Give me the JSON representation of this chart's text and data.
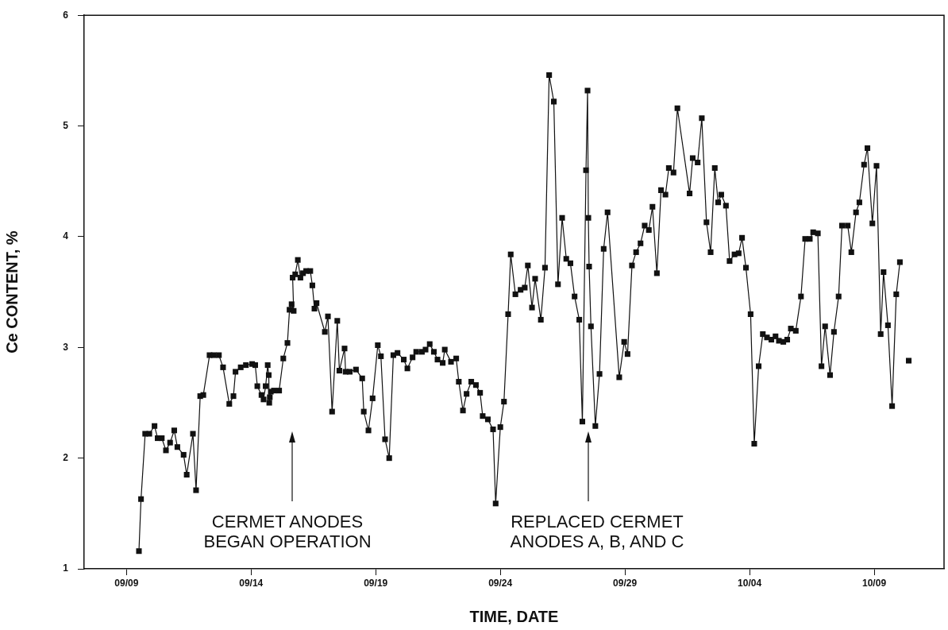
{
  "chart_data": {
    "type": "line",
    "xlabel": "TIME, DATE",
    "ylabel": "Ce CONTENT, %",
    "xlim": [
      "--09-07T07:15",
      "--10-11T19:15"
    ],
    "ylim": [
      1,
      6
    ],
    "xticks": [
      {
        "value": "--09-09",
        "label": "09/09"
      },
      {
        "value": "--09-14",
        "label": "09/14"
      },
      {
        "value": "--09-19",
        "label": "09/19"
      },
      {
        "value": "--09-24",
        "label": "09/24"
      },
      {
        "value": "--09-29",
        "label": "09/29"
      },
      {
        "value": "--10-04",
        "label": "10/04"
      },
      {
        "value": "--10-09",
        "label": "10/09"
      }
    ],
    "yticks": [
      1,
      2,
      3,
      4,
      5,
      6
    ],
    "grid": false,
    "legend": false,
    "marker": "square",
    "line_style": "solid",
    "annotations": [
      "CERMET ANODES\nBEGAN OPERATION",
      "REPLACED CERMET\nANODES A, B, AND C"
    ],
    "series": [
      {
        "color": "#111111",
        "x": [
          "--09-09T12:00",
          "--09-09T14:00",
          "--09-09T18:00",
          "--09-09T22:00",
          "--09-10T03:00",
          "--09-10T06:00",
          "--09-10T10:00",
          "--09-10T14:00",
          "--09-10T18:00",
          "--09-10T22:00",
          "--09-11T01:00",
          "--09-11T07:00",
          "--09-11T10:00",
          "--09-11T16:00",
          "--09-11T19:00",
          "--09-11T23:00",
          "--09-12T02:00",
          "--09-12T08:00",
          "--09-12T12:00",
          "--09-12T17:00",
          "--09-12T21:00",
          "--09-13T03:00",
          "--09-13T07:00",
          "--09-13T09:00",
          "--09-13T14:00",
          "--09-13T19:00",
          "--09-14T01:00",
          "--09-14T04:00",
          "--09-14T06:00",
          "--09-14T10:00",
          "--09-14T12:00",
          "--09-14T14:00",
          "--09-14T16:00",
          "--09-14T17:00",
          "--09-14T17:30",
          "--09-14T18:00",
          "--09-14T19:00",
          "--09-14T22:00",
          "--09-15T03:00",
          "--09-15T07:00",
          "--09-15T11:00",
          "--09-15T13:00",
          "--09-15T15:00",
          "--09-15T17:00",
          "--09-15T16:00",
          "--09-15T18:30",
          "--09-15T21:00",
          "--09-15T23:30",
          "--09-16T02:00",
          "--09-16T05:00",
          "--09-16T09:00",
          "--09-16T11:00",
          "--09-16T13:00",
          "--09-16T15:00",
          "--09-16T23:00",
          "--09-17T02:00",
          "--09-17T06:00",
          "--09-17T11:00",
          "--09-17T13:00",
          "--09-17T18:00",
          "--09-17T19:00",
          "--09-17T23:00",
          "--09-18T05:00",
          "--09-18T11:00",
          "--09-18T12:30",
          "--09-18T17:00",
          "--09-18T21:00",
          "--09-19T02:00",
          "--09-19T05:00",
          "--09-19T09:00",
          "--09-19T13:00",
          "--09-19T17:00",
          "--09-19T21:00",
          "--09-20T03:00",
          "--09-20T06:30",
          "--09-20T11:30",
          "--09-20T15:00",
          "--09-20T20:30",
          "--09-21T00:00",
          "--09-21T04:00",
          "--09-21T08:00",
          "--09-21T11:30",
          "--09-21T16:30",
          "--09-21T18:30",
          "--09-22T00:30",
          "--09-22T05:30",
          "--09-22T08:00",
          "--09-22T12:00",
          "--09-22T15:30",
          "--09-22T20:00",
          "--09-23T00:30",
          "--09-23T04:30",
          "--09-23T07:00",
          "--09-23T12:00",
          "--09-23T17:00",
          "--09-23T19:30",
          "--09-24T00:00",
          "--09-24T03:30",
          "--09-24T07:30",
          "--09-24T10:00",
          "--09-24T14:30",
          "--09-24T19:30",
          "--09-24T23:30",
          "--09-25T02:30",
          "--09-25T06:30",
          "--09-25T09:30",
          "--09-25T15:00",
          "--09-25T19:00",
          "--09-25T23:00",
          "--09-26T03:30",
          "--09-26T07:30",
          "--09-26T11:30",
          "--09-26T15:30",
          "--09-26T19:30",
          "--09-26T23:30",
          "--09-27T04:00",
          "--09-27T07:00",
          "--09-27T10:30",
          "--09-27T12:00",
          "--09-27T12:45",
          "--09-27T13:30",
          "--09-27T15:15",
          "--09-27T19:30",
          "--09-27T23:30",
          "--09-28T03:30",
          "--09-28T07:15",
          "--09-28T18:30",
          "--09-28T23:15",
          "--09-29T02:30",
          "--09-29T06:45",
          "--09-29T10:45",
          "--09-29T15:00",
          "--09-29T19:00",
          "--09-29T23:00",
          "--09-30T02:30",
          "--09-30T06:45",
          "--09-30T10:45",
          "--09-30T15:00",
          "--09-30T18:15",
          "--09-30T22:45",
          "--10-01T02:30",
          "--10-01T14:15",
          "--10-01T17:15",
          "--10-01T22:00",
          "--10-02T02:00",
          "--10-02T06:30",
          "--10-02T10:30",
          "--10-02T14:30",
          "--10-02T17:45",
          "--10-02T20:45",
          "--10-03T01:15",
          "--10-03T04:45",
          "--10-03T09:30",
          "--10-03T13:30",
          "--10-03T16:45",
          "--10-03T20:30",
          "--10-04T01:00",
          "--10-04T04:30",
          "--10-04T08:45",
          "--10-04T12:45",
          "--10-04T16:45",
          "--10-04T21:00",
          "--10-05T01:00",
          "--10-05T04:15",
          "--10-05T08:30",
          "--10-05T12:15",
          "--10-05T15:45",
          "--10-05T20:30",
          "--10-06T01:30",
          "--10-06T05:30",
          "--10-06T10:00",
          "--10-06T13:15",
          "--10-06T17:45",
          "--10-06T21:15",
          "--10-07T00:45",
          "--10-07T05:30",
          "--10-07T09:15",
          "--10-07T13:45",
          "--10-07T17:00",
          "--10-07T22:30",
          "--10-08T02:00",
          "--10-08T06:30",
          "--10-08T09:45",
          "--10-08T14:15",
          "--10-08T17:30",
          "--10-08T22:15",
          "--10-09T02:15",
          "--10-09T06:15",
          "--10-09T09:00",
          "--10-09T13:15",
          "--10-09T17:15",
          "--10-09T21:15",
          "--10-10T00:45",
          "--10-10T04:45",
          "--10-10T09:15"
        ],
        "values": [
          1.16,
          1.63,
          2.22,
          2.22,
          2.29,
          2.18,
          2.18,
          2.07,
          2.14,
          2.25,
          2.1,
          2.03,
          1.85,
          2.22,
          1.71,
          2.56,
          2.57,
          2.93,
          2.93,
          2.93,
          2.82,
          2.49,
          2.56,
          2.78,
          2.82,
          2.84,
          2.85,
          2.84,
          2.65,
          2.57,
          2.53,
          2.65,
          2.84,
          2.75,
          2.5,
          2.55,
          2.6,
          2.61,
          2.61,
          2.9,
          3.04,
          3.34,
          3.39,
          3.33,
          3.63,
          3.66,
          3.79,
          3.63,
          3.67,
          3.69,
          3.69,
          3.56,
          3.35,
          3.4,
          3.14,
          3.28,
          2.42,
          3.24,
          2.79,
          2.99,
          2.78,
          2.78,
          2.8,
          2.72,
          2.42,
          2.25,
          2.54,
          3.02,
          2.92,
          2.17,
          2,
          2.93,
          2.95,
          2.89,
          2.81,
          2.91,
          2.96,
          2.96,
          2.98,
          3.03,
          2.96,
          2.89,
          2.86,
          2.98,
          2.87,
          2.9,
          2.69,
          2.43,
          2.58,
          2.69,
          2.66,
          2.59,
          2.38,
          2.35,
          2.26,
          1.59,
          2.28,
          2.51,
          3.3,
          3.84,
          3.48,
          3.52,
          3.54,
          3.74,
          3.36,
          3.62,
          3.25,
          3.72,
          5.46,
          5.22,
          3.57,
          4.17,
          3.8,
          3.76,
          3.46,
          3.25,
          2.33,
          4.6,
          5.32,
          4.17,
          3.73,
          3.19,
          2.29,
          2.76,
          3.89,
          4.22,
          2.73,
          3.05,
          2.94,
          3.74,
          3.86,
          3.94,
          4.1,
          4.06,
          4.27,
          3.67,
          4.42,
          4.38,
          4.62,
          4.58,
          5.16,
          4.39,
          4.71,
          4.67,
          5.07,
          4.13,
          3.86,
          4.62,
          4.31,
          4.38,
          4.28,
          3.78,
          3.84,
          3.85,
          3.99,
          3.72,
          3.3,
          2.13,
          2.83,
          3.12,
          3.09,
          3.07,
          3.1,
          3.06,
          3.05,
          3.07,
          3.17,
          3.15,
          3.46,
          3.98,
          3.98,
          4.04,
          4.03,
          2.83,
          3.19,
          2.75,
          3.14,
          3.46,
          4.1,
          4.1,
          3.86,
          4.22,
          4.31,
          4.65,
          4.8,
          4.12,
          4.64,
          3.12,
          3.68,
          3.2,
          2.47,
          3.48,
          3.77,
          null,
          2.88
        ]
      }
    ]
  }
}
